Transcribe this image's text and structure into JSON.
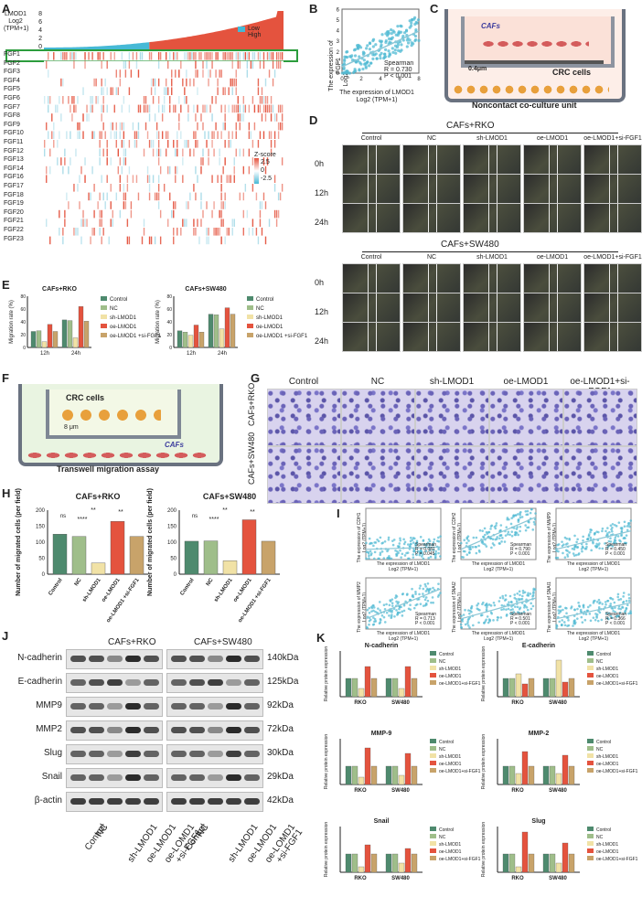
{
  "panels": {
    "A": {
      "label": "A",
      "ylabel_top": "LMOD1\nLog2 (TPM+1)",
      "yticks": [
        "8",
        "6",
        "4",
        "2",
        "0"
      ],
      "legend": [
        {
          "name": "Low",
          "color": "#46b9d6"
        },
        {
          "name": "High",
          "color": "#e4533e"
        }
      ],
      "genes": [
        "FGF1",
        "FGF2",
        "FGF3",
        "FGF4",
        "FGF5",
        "FGF6",
        "FGF7",
        "FGF8",
        "FGF9",
        "FGF10",
        "FGF11",
        "FGF12",
        "FGF13",
        "FGF14",
        "FGF16",
        "FGF17",
        "FGF18",
        "FGF19",
        "FGF20",
        "FGF21",
        "FGF22",
        "FGF23"
      ],
      "zscore_label": "Z-score",
      "zscore_ticks": [
        "2.5",
        "0",
        "-2.5"
      ]
    },
    "B": {
      "label": "B",
      "ylabel": "The expression of FGF1\nLog2 (TPM+1)",
      "xlabel": "The expression of LMOD1\nLog2 (TPM+1)",
      "stats": "Spearman\nR = 0.730\nP < 0.001",
      "xticks": [
        "0",
        "2",
        "4",
        "6",
        "8"
      ],
      "yticks": [
        "0",
        "1",
        "2",
        "3",
        "4",
        "5",
        "6"
      ]
    },
    "C": {
      "label": "C",
      "caf": "CAFs",
      "pore": "0.4μm",
      "crc": "CRC cells",
      "title": "Noncontact co-culture unit"
    },
    "D": {
      "label": "D",
      "top_title": "CAFs+RKO",
      "bottom_title": "CAFs+SW480",
      "columns": [
        "Control",
        "NC",
        "sh-LMOD1",
        "oe-LMOD1",
        "oe-LMOD1+si-FGF1"
      ],
      "rows": [
        "0h",
        "12h",
        "24h"
      ]
    },
    "E": {
      "label": "E",
      "charts": [
        {
          "title": "CAFs+RKO",
          "ylabel": "Migration rate (%)"
        },
        {
          "title": "CAFs+SW480",
          "ylabel": "Migration rate (%)"
        }
      ],
      "legend": [
        "Control",
        "NC",
        "sh-LMOD1",
        "oe-LMOD1",
        "oe-LMOD1\n+si-FGF1"
      ],
      "sig": [
        "ns",
        "****",
        "***",
        "****",
        "**",
        "****"
      ]
    },
    "F": {
      "label": "F",
      "crc": "CRC cells",
      "pore": "8 μm",
      "caf": "CAFs",
      "title": "Transwell migration assay"
    },
    "G": {
      "label": "G",
      "columns": [
        "Control",
        "NC",
        "sh-LMOD1",
        "oe-LMOD1",
        "oe-LMOD1+si-FGF1"
      ],
      "rows": [
        "CAFs+RKO",
        "CAFs+SW480"
      ]
    },
    "H": {
      "label": "H",
      "charts": [
        {
          "title": "CAFs+RKO",
          "ylabel": "Number of migrated cells (per field)",
          "sig": [
            "ns",
            "**",
            "****",
            "**"
          ]
        },
        {
          "title": "CAFs+SW480",
          "ylabel": "Number of migrated cells (per field)",
          "sig": [
            "ns",
            "**",
            "****",
            "**"
          ]
        }
      ],
      "xlabels": [
        "Control",
        "NC",
        "sh-LMOD1",
        "oe-LMOD1",
        "oe-LMOD1\n+si-FGF1"
      ]
    },
    "I": {
      "label": "I",
      "plots": [
        {
          "ylabel": "The expression of CDH1\nLog2 (TPM+1)",
          "stats": "Spearman\nR = 0.081\nP = 0.045"
        },
        {
          "ylabel": "The expression of CDH2\nLog2 (TPM+1)",
          "stats": "Spearman\nR = 0.790\nP < 0.001"
        },
        {
          "ylabel": "The expression of MMP9\nLog2 (TPM+1)",
          "stats": "Spearman\nR = 0.450\nP < 0.001"
        },
        {
          "ylabel": "The expression of MMP2\nLog2 (TPM+1)",
          "stats": "Spearman\nR = 0.713\nP < 0.001"
        },
        {
          "ylabel": "The expression of SNAI2\nLog2 (TPM+1)",
          "stats": "Spearman\nR = 0.501\nP < 0.001"
        },
        {
          "ylabel": "The expression of SNAI1\nLog2 (TPM+1)",
          "stats": "Spearman\nR = 0.366\nP < 0.001"
        }
      ],
      "xlabel": "The expression of LMOD1\nLog2 (TPM+1)"
    },
    "J": {
      "label": "J",
      "groups": [
        "CAFs+RKO",
        "CAFs+SW480"
      ],
      "proteins": [
        {
          "name": "N-cadherin",
          "kda": "140kDa"
        },
        {
          "name": "E-cadherin",
          "kda": "125kDa"
        },
        {
          "name": "MMP9",
          "kda": "92kDa"
        },
        {
          "name": "MMP2",
          "kda": "72kDa"
        },
        {
          "name": "Slug",
          "kda": "30kDa"
        },
        {
          "name": "Snail",
          "kda": "29kDa"
        },
        {
          "name": "β-actin",
          "kda": "42kDa"
        }
      ],
      "lanes": [
        "Control",
        "NC",
        "sh-LMOD1",
        "oe-LMOD1",
        "oe-LOMD1\n+si-FGF1"
      ]
    },
    "K": {
      "label": "K",
      "charts": [
        {
          "title": "N-cadherin",
          "ylabel": "Relative protein expression"
        },
        {
          "title": "E-cadherin",
          "ylabel": "Relative protein expression"
        },
        {
          "title": "MMP-9",
          "ylabel": "Relative protein expression"
        },
        {
          "title": "MMP-2",
          "ylabel": "Relative protein expression"
        },
        {
          "title": "Snail",
          "ylabel": "Relative protein expression"
        },
        {
          "title": "Slug",
          "ylabel": "Relative protein expression"
        }
      ],
      "legend": [
        "Control",
        "NC",
        "sh-LMOD1",
        "oe-LMOD1",
        "oe-LMOD1+si-FGF1"
      ],
      "xlabels": [
        "RKO",
        "SW480"
      ]
    }
  },
  "colors": {
    "control": "#4e8a6e",
    "nc": "#9fbe8a",
    "sh": "#f1e2a6",
    "oe": "#e4533e",
    "oe_si": "#c8a36a",
    "low": "#46b9d6",
    "high": "#e4533e",
    "heat_pos": "#e4533e",
    "heat_neg": "#46b9d6"
  },
  "chart_data": [
    {
      "type": "bar",
      "title": "CAFs+RKO",
      "ylabel": "Migration rate (%)",
      "categories": [
        "12h",
        "24h"
      ],
      "series": [
        {
          "name": "Control",
          "values": [
            25,
            43
          ]
        },
        {
          "name": "NC",
          "values": [
            26,
            42
          ]
        },
        {
          "name": "sh-LMOD1",
          "values": [
            9,
            15
          ]
        },
        {
          "name": "oe-LMOD1",
          "values": [
            36,
            64
          ]
        },
        {
          "name": "oe-LMOD1\n+si-FGF1",
          "values": [
            25,
            41
          ]
        }
      ],
      "ylim": [
        0,
        80
      ]
    },
    {
      "type": "bar",
      "title": "CAFs+SW480",
      "ylabel": "Migration rate (%)",
      "categories": [
        "12h",
        "24h"
      ],
      "series": [
        {
          "name": "Control",
          "values": [
            26,
            52
          ]
        },
        {
          "name": "NC",
          "values": [
            24,
            51
          ]
        },
        {
          "name": "sh-LMOD1",
          "values": [
            19,
            29
          ]
        },
        {
          "name": "oe-LMOD1",
          "values": [
            35,
            62
          ]
        },
        {
          "name": "oe-LMOD1\n+si-FGF1",
          "values": [
            24,
            52
          ]
        }
      ],
      "ylim": [
        0,
        80
      ]
    },
    {
      "type": "bar",
      "title": "CAFs+RKO",
      "ylabel": "Number of migrated cells (per field)",
      "categories": [
        "Control",
        "NC",
        "sh-LMOD1",
        "oe-LMOD1",
        "oe-LMOD1\n+si-FGF1"
      ],
      "values": [
        125,
        118,
        35,
        165,
        118
      ],
      "ylim": [
        0,
        200
      ]
    },
    {
      "type": "bar",
      "title": "CAFs+SW480",
      "ylabel": "Number of migrated cells (per field)",
      "categories": [
        "Control",
        "NC",
        "sh-LMOD1",
        "oe-LMOD1",
        "oe-LMOD1\n+si-FGF1"
      ],
      "values": [
        103,
        104,
        42,
        170,
        103
      ],
      "ylim": [
        0,
        200
      ]
    }
  ]
}
